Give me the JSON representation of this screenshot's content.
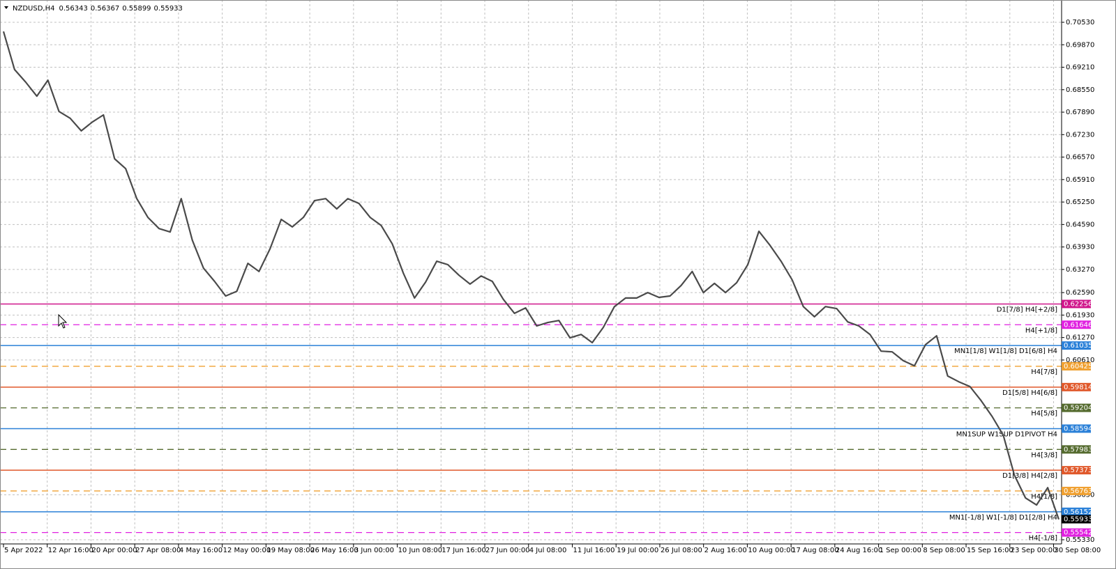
{
  "chart_data": {
    "type": "line",
    "title": "NZDUSD,H4",
    "ohlc": [
      0.56343,
      0.56367,
      0.55899,
      0.55933
    ],
    "color": "#4a4a4a",
    "grid": true,
    "ylim": [
      0.5533,
      0.7053
    ],
    "yticks": [
      {
        "value": 0.7053,
        "label": "0.70530"
      },
      {
        "value": 0.6987,
        "label": "0.69870"
      },
      {
        "value": 0.6921,
        "label": "0.69210"
      },
      {
        "value": 0.6855,
        "label": "0.68550"
      },
      {
        "value": 0.6789,
        "label": "0.67890"
      },
      {
        "value": 0.6723,
        "label": "0.67230"
      },
      {
        "value": 0.6657,
        "label": "0.66570"
      },
      {
        "value": 0.6591,
        "label": "0.65910"
      },
      {
        "value": 0.6525,
        "label": "0.65250"
      },
      {
        "value": 0.6459,
        "label": "0.64590"
      },
      {
        "value": 0.6393,
        "label": "0.63930"
      },
      {
        "value": 0.6327,
        "label": "0.63270"
      },
      {
        "value": 0.6259,
        "label": "0.62590"
      },
      {
        "value": 0.6193,
        "label": "0.61930"
      },
      {
        "value": 0.6127,
        "label": "0.61270"
      },
      {
        "value": 0.6061,
        "label": "0.60610"
      },
      {
        "value": 0.5665,
        "label": "0.56650"
      },
      {
        "value": 0.5533,
        "label": "0.55330"
      }
    ],
    "xticks": [
      "5 Apr 2022",
      "12 Apr 16:00",
      "20 Apr 00:00",
      "27 Apr 08:00",
      "4 May 16:00",
      "12 May 00:00",
      "19 May 08:00",
      "26 May 16:00",
      "3 Jun 00:00",
      "10 Jun 08:00",
      "17 Jun 16:00",
      "27 Jun 00:00",
      "4 Jul 08:00",
      "11 Jul 16:00",
      "19 Jul 00:00",
      "26 Jul 08:00",
      "2 Aug 16:00",
      "10 Aug 00:00",
      "17 Aug 08:00",
      "24 Aug 16:00",
      "1 Sep 00:00",
      "8 Sep 08:00",
      "15 Sep 16:00",
      "23 Sep 00:00",
      "30 Sep 08:00"
    ],
    "values": [
      0.7026,
      0.6914,
      0.6877,
      0.6836,
      0.6883,
      0.6791,
      0.6771,
      0.6734,
      0.676,
      0.6781,
      0.6652,
      0.6623,
      0.6535,
      0.648,
      0.6447,
      0.6437,
      0.6535,
      0.6413,
      0.6331,
      0.6292,
      0.6249,
      0.6263,
      0.6345,
      0.6321,
      0.6388,
      0.6474,
      0.6452,
      0.648,
      0.6529,
      0.6535,
      0.6505,
      0.6535,
      0.6521,
      0.648,
      0.6456,
      0.6402,
      0.6316,
      0.6243,
      0.629,
      0.6351,
      0.6341,
      0.631,
      0.6284,
      0.6308,
      0.6292,
      0.6239,
      0.6198,
      0.6214,
      0.6161,
      0.6171,
      0.6177,
      0.6126,
      0.6136,
      0.6112,
      0.6157,
      0.6218,
      0.6243,
      0.6243,
      0.6259,
      0.6245,
      0.6249,
      0.628,
      0.6321,
      0.6259,
      0.6286,
      0.6259,
      0.6288,
      0.6341,
      0.6439,
      0.6398,
      0.6351,
      0.6296,
      0.6218,
      0.6188,
      0.6218,
      0.6212,
      0.6173,
      0.6161,
      0.6136,
      0.6087,
      0.6085,
      0.6059,
      0.6044,
      0.6106,
      0.6132,
      0.6014,
      0.5997,
      0.5983,
      0.5942,
      0.5895,
      0.584,
      0.5723,
      0.5656,
      0.5635,
      0.5686,
      0.5593
    ],
    "levels": [
      {
        "name": "D1[7/8] H4[+2/8]",
        "value": 0.62256,
        "color": "#d0158a",
        "dashed": false
      },
      {
        "name": "H4[+1/8]",
        "value": 0.61646,
        "color": "#e020e0",
        "dashed": true
      },
      {
        "name": "MN1[1/8] W1[1/8] D1[6/8] H4",
        "value": 0.61035,
        "color": "#2a80d8",
        "dashed": false
      },
      {
        "name": "H4[7/8]",
        "value": 0.60425,
        "color": "#f0a030",
        "dashed": true
      },
      {
        "name": "D1[5/8] H4[6/8]",
        "value": 0.59814,
        "color": "#e0582a",
        "dashed": false
      },
      {
        "name": "H4[5/8]",
        "value": 0.59204,
        "color": "#556b2f",
        "dashed": true
      },
      {
        "name": "MN1SUP W1SUP D1PIVOT H4",
        "value": 0.58594,
        "color": "#2a80d8",
        "dashed": false
      },
      {
        "name": "H4[3/8]",
        "value": 0.57983,
        "color": "#556b2f",
        "dashed": true
      },
      {
        "name": "D1[3/8] H4[2/8]",
        "value": 0.57373,
        "color": "#e0582a",
        "dashed": false
      },
      {
        "name": "H4[1/8]",
        "value": 0.56763,
        "color": "#f0a030",
        "dashed": true
      },
      {
        "name": "MN1[-1/8] W1[-1/8] D1[2/8] H4",
        "value": 0.56152,
        "color": "#2a80d8",
        "dashed": false
      },
      {
        "name": "H4[-1/8]",
        "value": 0.55542,
        "color": "#e020e0",
        "dashed": true
      }
    ]
  }
}
